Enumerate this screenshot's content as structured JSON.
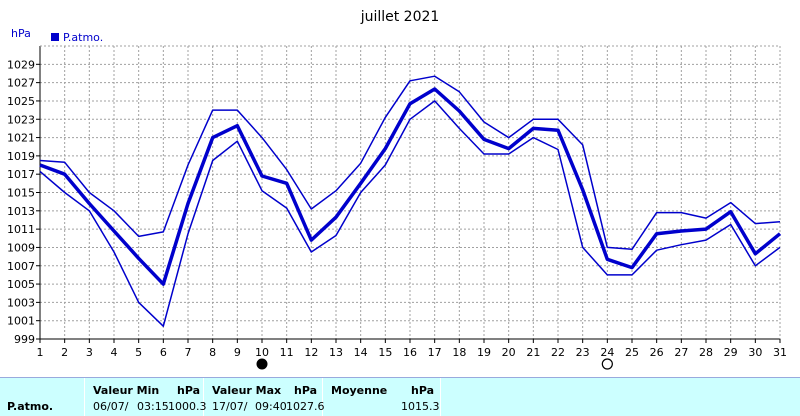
{
  "chart_data": {
    "type": "line",
    "title": "juillet 2021",
    "ylabel": "hPa",
    "legend": {
      "label": "P.atmo.",
      "color": "#0000cc",
      "placement": "top-left"
    },
    "ylim": [
      999,
      1031
    ],
    "yticks": [
      999,
      1001,
      1003,
      1005,
      1007,
      1009,
      1011,
      1013,
      1015,
      1017,
      1019,
      1021,
      1023,
      1025,
      1027,
      1029
    ],
    "x": [
      1,
      2,
      3,
      4,
      5,
      6,
      7,
      8,
      9,
      10,
      11,
      12,
      13,
      14,
      15,
      16,
      17,
      18,
      19,
      20,
      21,
      22,
      23,
      24,
      25,
      26,
      27,
      28,
      29,
      30,
      31
    ],
    "grid": true,
    "series": [
      {
        "role": "max",
        "color": "#0000cc",
        "width": 1.5,
        "values": [
          1018.5,
          1018.3,
          1015.0,
          1013.0,
          1010.2,
          1010.7,
          1018.0,
          1024.0,
          1024.0,
          1021.0,
          1017.5,
          1013.2,
          1015.2,
          1018.2,
          1023.2,
          1027.2,
          1027.7,
          1026.0,
          1022.7,
          1021.0,
          1023.0,
          1023.0,
          1020.2,
          1009.0,
          1008.8,
          1012.8,
          1012.8,
          1012.2,
          1013.9,
          1011.6,
          1011.8
        ]
      },
      {
        "role": "mean",
        "color": "#0000cc",
        "width": 3.5,
        "values": [
          1018.0,
          1017.0,
          1013.8,
          1010.8,
          1007.8,
          1005.0,
          1013.8,
          1021.0,
          1022.3,
          1016.8,
          1016.0,
          1009.8,
          1012.3,
          1016.0,
          1019.8,
          1024.7,
          1026.3,
          1023.9,
          1020.8,
          1019.8,
          1022.0,
          1021.8,
          1015.3,
          1007.7,
          1006.8,
          1010.5,
          1010.8,
          1011.0,
          1012.9,
          1008.3,
          1010.5
        ]
      },
      {
        "role": "min",
        "color": "#0000cc",
        "width": 1.5,
        "values": [
          1017.3,
          1015.0,
          1013.0,
          1008.5,
          1003.0,
          1000.4,
          1010.5,
          1018.5,
          1020.6,
          1015.2,
          1013.3,
          1008.5,
          1010.3,
          1015.0,
          1018.0,
          1023.0,
          1025.0,
          1022.0,
          1019.2,
          1019.2,
          1021.0,
          1019.7,
          1009.0,
          1006.0,
          1006.0,
          1008.7,
          1009.3,
          1009.8,
          1011.5,
          1007.0,
          1009.0
        ]
      }
    ],
    "markers": [
      {
        "kind": "new-moon",
        "x": 10
      },
      {
        "kind": "full-moon",
        "x": 24
      }
    ]
  },
  "summary": {
    "row_label": "P.atmo.",
    "min_header": "Valeur Min",
    "max_header": "Valeur Max",
    "avg_header": "Moyenne",
    "unit": "hPa",
    "min_date": "06/07/",
    "min_time": "03:15",
    "min_value": "1000.3",
    "max_date": "17/07/",
    "max_time": "09:40",
    "max_value": "1027.6",
    "avg_value": "1015.3"
  }
}
